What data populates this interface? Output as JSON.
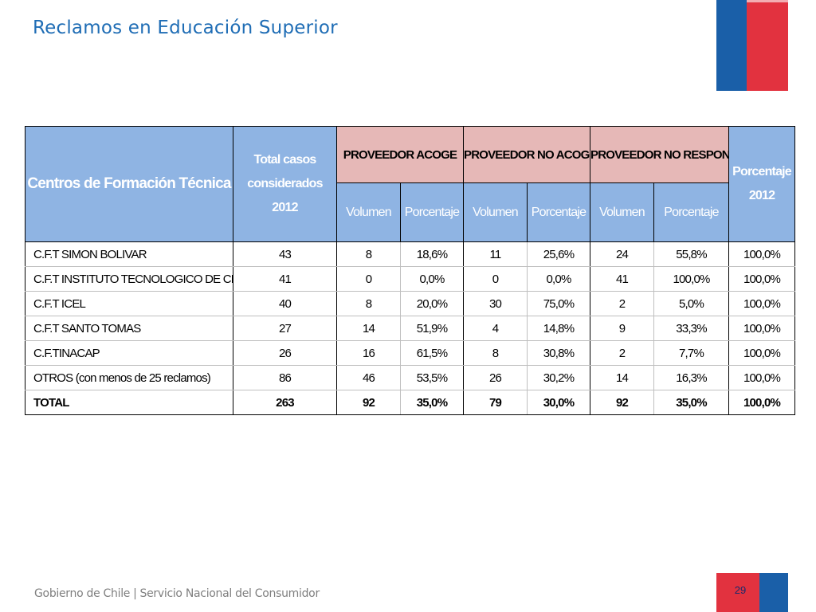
{
  "slide": {
    "title": "Reclamos en Educación Superior",
    "page_number": "29"
  },
  "footer": {
    "left": "Gobierno de Chile",
    "separator": "|",
    "right": "Servicio Nacional del Consumidor"
  },
  "colors": {
    "title": "#1f6db5",
    "header_blue": "#8fb4e3",
    "header_pink": "#e6b8b7",
    "flag_blue": "#1a5fa8",
    "flag_red": "#e2323f"
  },
  "table": {
    "headers": {
      "centros": "Centros de Formación Técnica",
      "total_casos": "Total casos considerados 2012",
      "group1": "PROVEEDOR ACOGE",
      "group2": "PROVEEDOR NO ACOGE",
      "group3": "PROVEEDOR NO RESPONDE",
      "porcentaje_2012": "Porcentaje 2012",
      "volumen": "Volumen",
      "porcentaje": "Porcentaje"
    },
    "rows": [
      {
        "name": "C.F.T  SIMON BOLIVAR",
        "total": "43",
        "acoge_vol": "8",
        "acoge_pct": "18,6%",
        "noacoge_vol": "11",
        "noacoge_pct": "25,6%",
        "noresp_vol": "24",
        "noresp_pct": "55,8%",
        "pct_2012": "100,0%"
      },
      {
        "name": "C.F.T INSTITUTO TECNOLOGICO DE CHILE",
        "total": "41",
        "acoge_vol": "0",
        "acoge_pct": "0,0%",
        "noacoge_vol": "0",
        "noacoge_pct": "0,0%",
        "noresp_vol": "41",
        "noresp_pct": "100,0%",
        "pct_2012": "100,0%"
      },
      {
        "name": "C.F.T ICEL",
        "total": "40",
        "acoge_vol": "8",
        "acoge_pct": "20,0%",
        "noacoge_vol": "30",
        "noacoge_pct": "75,0%",
        "noresp_vol": "2",
        "noresp_pct": "5,0%",
        "pct_2012": "100,0%"
      },
      {
        "name": "C.F.T SANTO TOMAS",
        "total": "27",
        "acoge_vol": "14",
        "acoge_pct": "51,9%",
        "noacoge_vol": "4",
        "noacoge_pct": "14,8%",
        "noresp_vol": "9",
        "noresp_pct": "33,3%",
        "pct_2012": "100,0%"
      },
      {
        "name": "C.F.TINACAP",
        "total": "26",
        "acoge_vol": "16",
        "acoge_pct": "61,5%",
        "noacoge_vol": "8",
        "noacoge_pct": "30,8%",
        "noresp_vol": "2",
        "noresp_pct": "7,7%",
        "pct_2012": "100,0%"
      },
      {
        "name": "OTROS (con menos de 25 reclamos)",
        "total": "86",
        "acoge_vol": "46",
        "acoge_pct": "53,5%",
        "noacoge_vol": "26",
        "noacoge_pct": "30,2%",
        "noresp_vol": "14",
        "noresp_pct": "16,3%",
        "pct_2012": "100,0%"
      },
      {
        "name": "TOTAL",
        "total": "263",
        "acoge_vol": "92",
        "acoge_pct": "35,0%",
        "noacoge_vol": "79",
        "noacoge_pct": "30,0%",
        "noresp_vol": "92",
        "noresp_pct": "35,0%",
        "pct_2012": "100,0%"
      }
    ]
  }
}
